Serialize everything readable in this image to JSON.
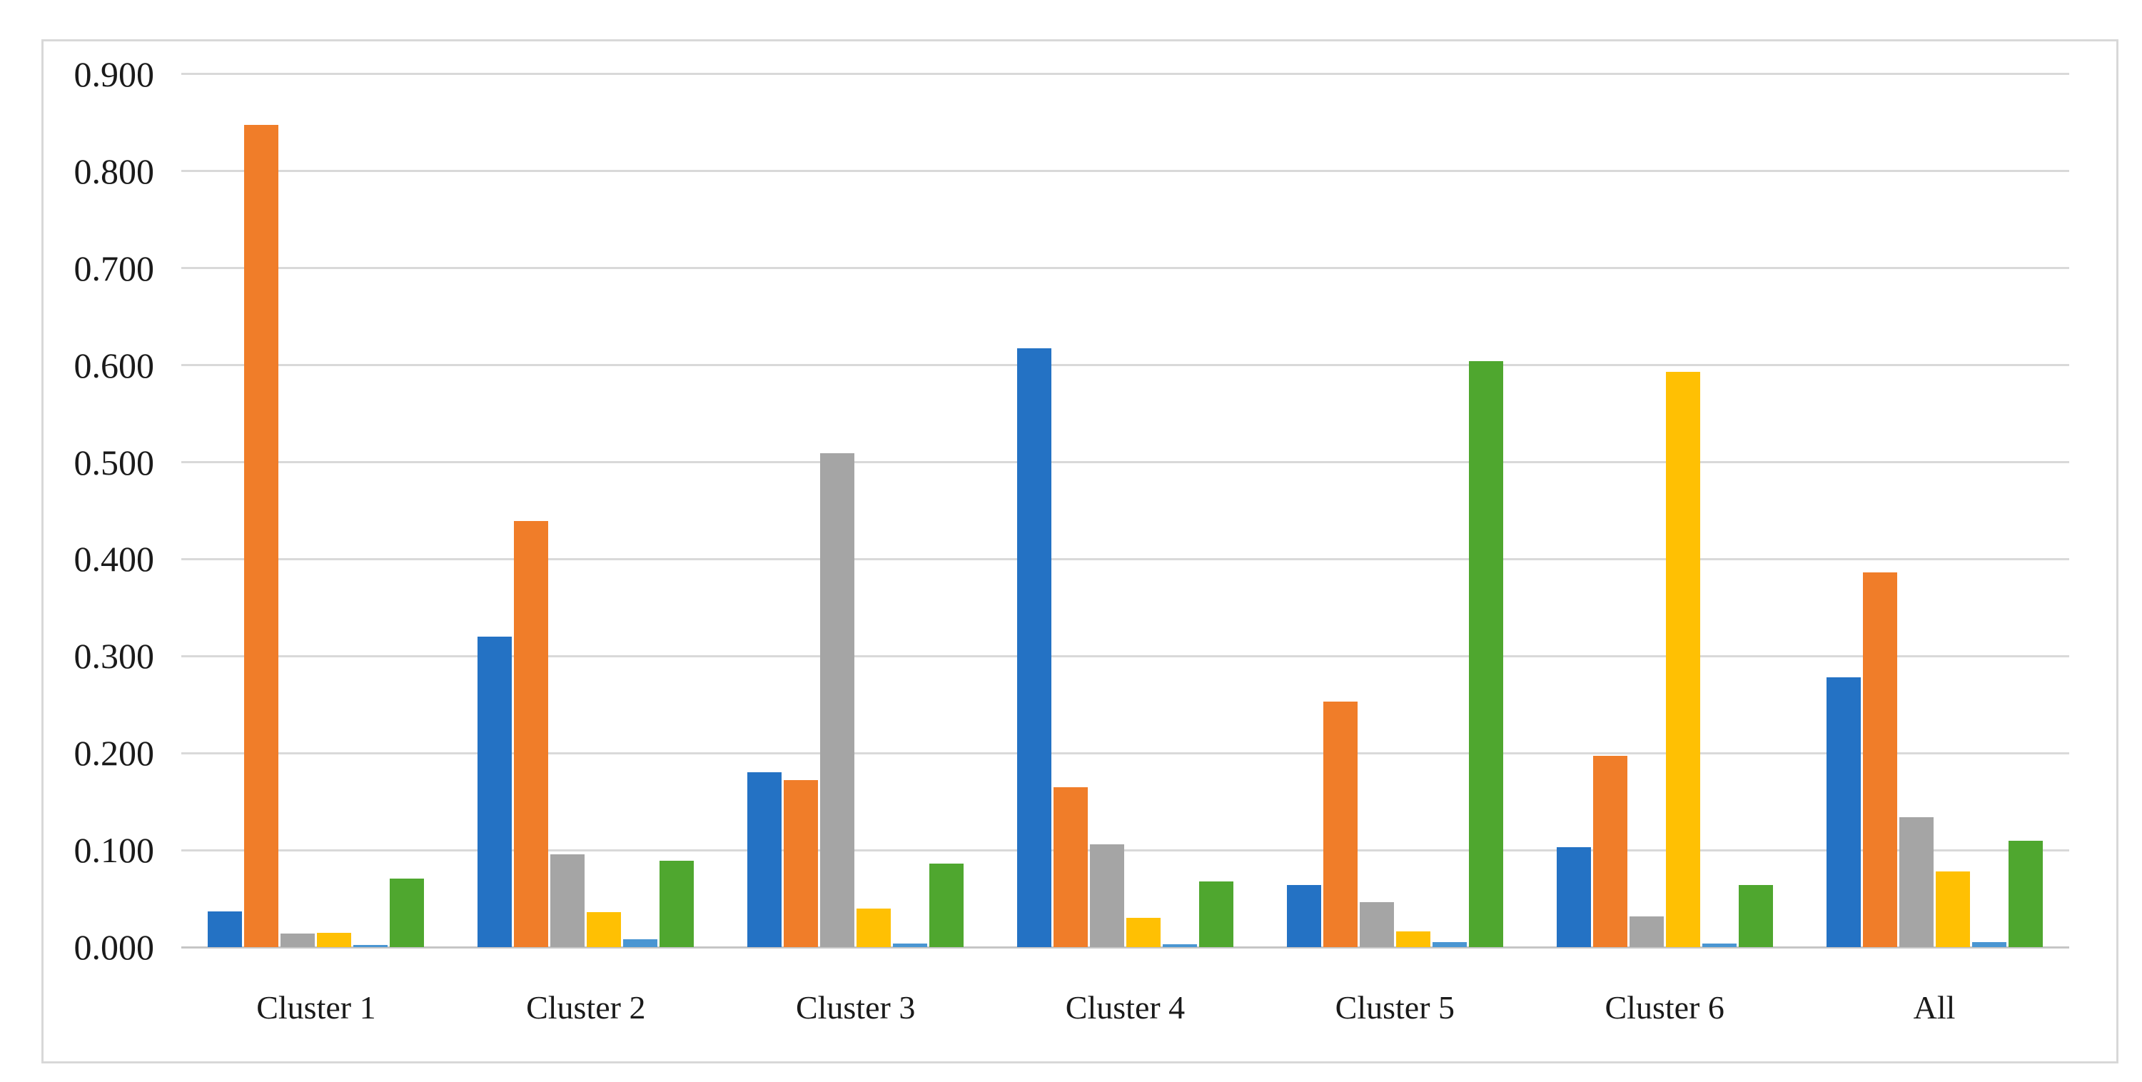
{
  "chart_data": {
    "type": "bar",
    "categories": [
      "Cluster 1",
      "Cluster 2",
      "Cluster 3",
      "Cluster 4",
      "Cluster 5",
      "Cluster 6",
      "All"
    ],
    "series": [
      {
        "name": "blue",
        "color": "#2472C4",
        "values": [
          0.037,
          0.32,
          0.18,
          0.617,
          0.064,
          0.103,
          0.278
        ]
      },
      {
        "name": "orange",
        "color": "#F07D29",
        "values": [
          0.848,
          0.439,
          0.172,
          0.165,
          0.253,
          0.197,
          0.386
        ]
      },
      {
        "name": "gray",
        "color": "#A5A5A5",
        "values": [
          0.014,
          0.096,
          0.509,
          0.106,
          0.046,
          0.032,
          0.134
        ]
      },
      {
        "name": "yellow",
        "color": "#FFC003",
        "values": [
          0.015,
          0.036,
          0.04,
          0.03,
          0.016,
          0.593,
          0.078
        ]
      },
      {
        "name": "light-blue",
        "color": "#4A96D2",
        "values": [
          0.002,
          0.008,
          0.004,
          0.003,
          0.005,
          0.004,
          0.005
        ]
      },
      {
        "name": "green",
        "color": "#4FA72F",
        "values": [
          0.071,
          0.089,
          0.086,
          0.068,
          0.604,
          0.064,
          0.11
        ]
      }
    ],
    "y_ticks": [
      "0.000",
      "0.100",
      "0.200",
      "0.300",
      "0.400",
      "0.500",
      "0.600",
      "0.700",
      "0.800",
      "0.900"
    ],
    "ylim": [
      0.0,
      0.9
    ],
    "y_tick_step": 0.1,
    "grid": true,
    "legend_position": "none",
    "gridline_color": "#d9d9d9",
    "axis_line_color": "#c6c6c6",
    "label_color": "#1a1a1a"
  }
}
